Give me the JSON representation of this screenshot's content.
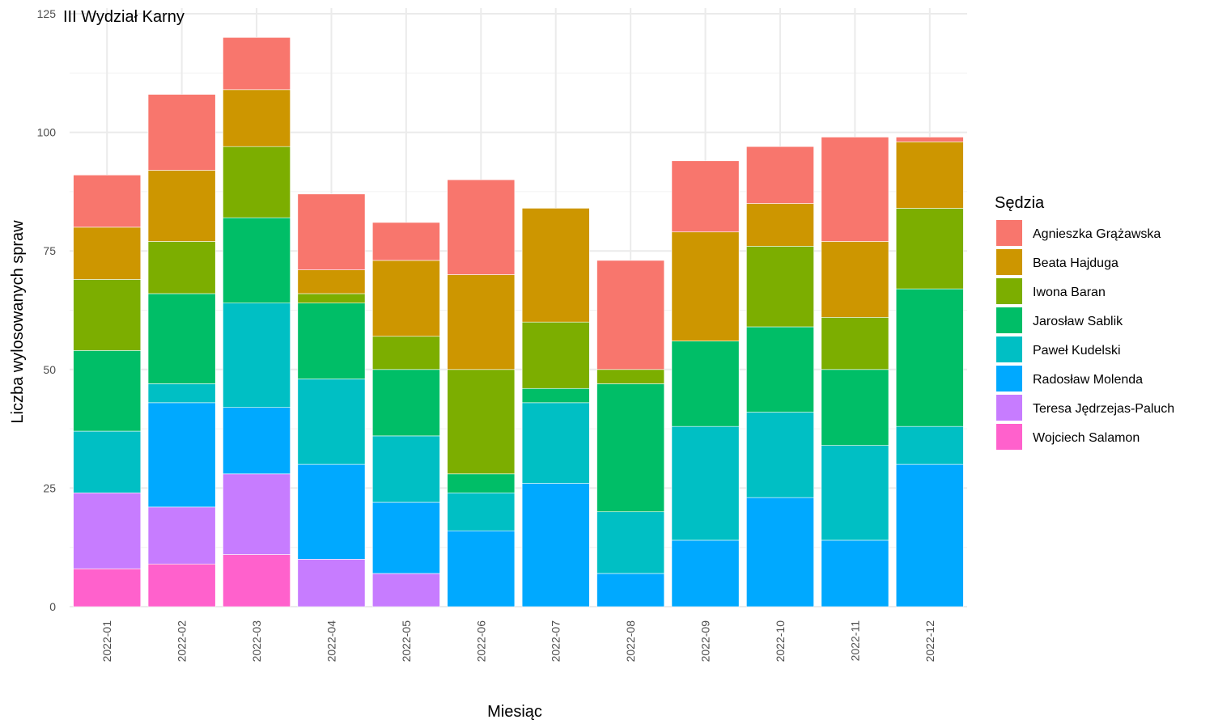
{
  "chart_data": {
    "type": "bar",
    "stacked": true,
    "title": "III Wydział Karny",
    "xlabel": "Miesiąc",
    "ylabel": "Liczba wylosowanych spraw",
    "ylim": [
      0,
      125
    ],
    "yticks": [
      0,
      25,
      50,
      75,
      100,
      125
    ],
    "grid": true,
    "legend_title": "Sędzia",
    "legend_position": "right",
    "categories": [
      "2022-01",
      "2022-02",
      "2022-03",
      "2022-04",
      "2022-05",
      "2022-06",
      "2022-07",
      "2022-08",
      "2022-09",
      "2022-10",
      "2022-11",
      "2022-12"
    ],
    "series": [
      {
        "name": "Agnieszka Grążawska",
        "color": "#F8766D",
        "values": [
          11,
          16,
          11,
          16,
          8,
          20,
          0,
          23,
          15,
          12,
          22,
          1
        ]
      },
      {
        "name": "Beata Hajduga",
        "color": "#CD9600",
        "values": [
          11,
          15,
          12,
          5,
          16,
          20,
          24,
          0,
          23,
          9,
          16,
          14
        ]
      },
      {
        "name": "Iwona Baran",
        "color": "#7CAE00",
        "values": [
          15,
          11,
          15,
          2,
          7,
          22,
          14,
          3,
          0,
          17,
          11,
          17
        ]
      },
      {
        "name": "Jarosław Sablik",
        "color": "#00BE67",
        "values": [
          17,
          19,
          18,
          16,
          14,
          4,
          3,
          27,
          18,
          18,
          16,
          29
        ]
      },
      {
        "name": "Paweł Kudelski",
        "color": "#00BFC4",
        "values": [
          13,
          4,
          22,
          18,
          14,
          8,
          17,
          13,
          24,
          18,
          20,
          8
        ]
      },
      {
        "name": "Radosław Molenda",
        "color": "#00A9FF",
        "values": [
          0,
          22,
          14,
          20,
          15,
          16,
          26,
          7,
          14,
          23,
          14,
          30
        ]
      },
      {
        "name": "Teresa Jędrzejas-Paluch",
        "color": "#C77CFF",
        "values": [
          16,
          12,
          17,
          10,
          7,
          0,
          0,
          0,
          0,
          0,
          0,
          0
        ]
      },
      {
        "name": "Wojciech Salamon",
        "color": "#FF61CC",
        "values": [
          8,
          9,
          11,
          0,
          0,
          0,
          0,
          0,
          0,
          0,
          0,
          0
        ]
      }
    ]
  }
}
